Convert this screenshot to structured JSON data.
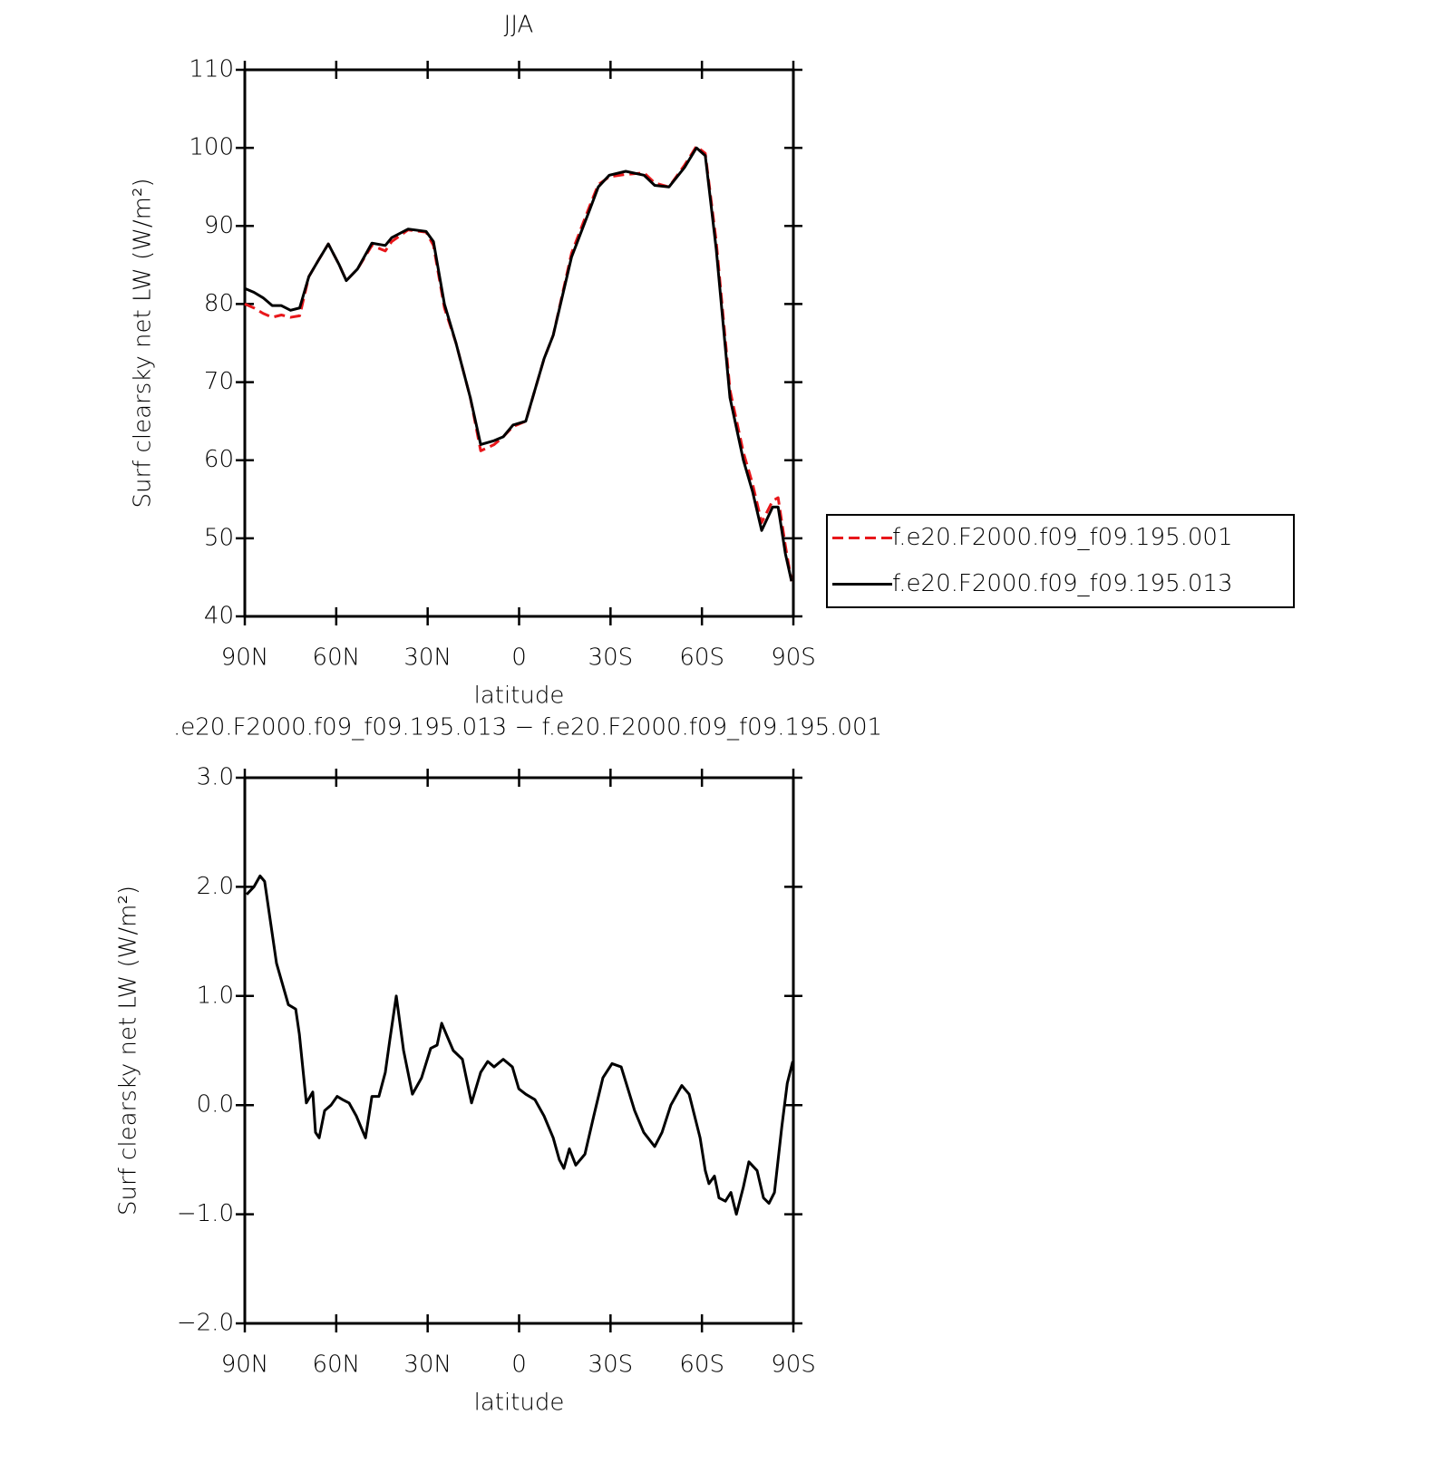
{
  "chart_data": [
    {
      "type": "line",
      "title": "JJA",
      "x_label": "latitude",
      "y_label": "Surf clearsky net LW (W/m²)",
      "xlim": [
        90,
        -90
      ],
      "xticks": [
        {
          "value": 90,
          "label": "90N"
        },
        {
          "value": 60,
          "label": "60N"
        },
        {
          "value": 30,
          "label": "30N"
        },
        0,
        {
          "value": -30,
          "label": "30S"
        },
        {
          "value": -60,
          "label": "60S"
        },
        {
          "value": -90,
          "label": "90S"
        }
      ],
      "ylim": [
        40,
        110
      ],
      "yticks": [
        40,
        50,
        60,
        70,
        80,
        90,
        100,
        110
      ],
      "legend": "right",
      "x": [
        90,
        87,
        84,
        81,
        78,
        75,
        72,
        69,
        66,
        62.6,
        59,
        56.7,
        53,
        48.3,
        43.9,
        41.8,
        36.4,
        30.5,
        28.1,
        24.5,
        20.7,
        16,
        12.6,
        8.2,
        5.2,
        2,
        -2.2,
        -8.2,
        -11.2,
        -17.2,
        -23.1,
        -26,
        -29.6,
        -35,
        -41,
        -44.5,
        -49.2,
        -54.3,
        -58.2,
        -61.1,
        -64.7,
        -69.2,
        -73.6,
        -76.6,
        -79.6,
        -83.2,
        -85,
        -87.4,
        -89.4
      ],
      "series": [
        {
          "name": "f.e20.F2000.f09_f09.195.001",
          "color": "#e8171b",
          "style": "dashed",
          "values": [
            80,
            79.5,
            78.8,
            78.3,
            78.6,
            78.3,
            78.5,
            83.5,
            85.5,
            87.7,
            85,
            83,
            84.5,
            87.5,
            86.8,
            88,
            89.5,
            89.2,
            87.5,
            79.5,
            75,
            68,
            61.2,
            62,
            63,
            64.3,
            65,
            73,
            76,
            86.5,
            92.5,
            95.3,
            96.3,
            96.6,
            96.8,
            95.5,
            95,
            97.8,
            100.2,
            99.3,
            88,
            69,
            61,
            57,
            52,
            54.8,
            55.2,
            49,
            44.5
          ]
        },
        {
          "name": "f.e20.F2000.f09_f09.195.013",
          "color": "#000000",
          "style": "solid",
          "values": [
            82,
            81.5,
            80.8,
            79.8,
            79.8,
            79.2,
            79.5,
            83.5,
            85.5,
            87.7,
            85,
            83,
            84.5,
            87.8,
            87.5,
            88.5,
            89.6,
            89.3,
            88,
            80,
            75,
            68,
            62,
            62.5,
            63,
            64.5,
            65,
            73,
            76,
            86,
            92,
            95,
            96.5,
            97,
            96.5,
            95.2,
            95,
            97.5,
            100,
            99,
            87,
            68,
            60,
            56,
            51,
            54,
            54,
            48,
            44.5
          ]
        }
      ]
    },
    {
      "type": "line",
      "title": ".e20.F2000.f09_f09.195.013 − f.e20.F2000.f09_f09.195.001",
      "x_label": "latitude",
      "y_label": "Surf clearsky net LW (W/m²)",
      "xlim": [
        90,
        -90
      ],
      "xticks": [
        {
          "value": 90,
          "label": "90N"
        },
        {
          "value": 60,
          "label": "60N"
        },
        {
          "value": 30,
          "label": "30N"
        },
        0,
        {
          "value": -30,
          "label": "30S"
        },
        {
          "value": -60,
          "label": "60S"
        },
        {
          "value": -90,
          "label": "90S"
        }
      ],
      "ylim": [
        -2,
        3
      ],
      "yticks": [
        {
          "value": -2,
          "label": "−2.0"
        },
        {
          "value": -1,
          "label": "−1.0"
        },
        {
          "value": 0,
          "label": "0.0"
        },
        {
          "value": 1,
          "label": "1.0"
        },
        {
          "value": 2,
          "label": "2.0"
        },
        {
          "value": 3,
          "label": "3.0"
        }
      ],
      "x": [
        89.4,
        87,
        85,
        83.5,
        79.6,
        75.7,
        73.3,
        72.1,
        69.8,
        67.7,
        66.8,
        65.6,
        63.8,
        61.7,
        59.7,
        57.9,
        55.8,
        53.4,
        50.4,
        48.3,
        46,
        43.9,
        42.4,
        40.3,
        37.9,
        35,
        32,
        29,
        26.9,
        25.4,
        23.9,
        21.6,
        18.6,
        15.6,
        12.6,
        10.3,
        8.2,
        5.2,
        2.2,
        0.1,
        -2.2,
        -5.2,
        -8.2,
        -11.2,
        -13.2,
        -14.7,
        -16.5,
        -18.6,
        -21.6,
        -24.5,
        -27.5,
        -30.5,
        -33.5,
        -37.9,
        -40.9,
        -44.5,
        -46.9,
        -49.8,
        -53.4,
        -55.8,
        -59.4,
        -61.1,
        -62.3,
        -64.1,
        -65.6,
        -67.7,
        -69.5,
        -71.3,
        -73.6,
        -75.4,
        -78.1,
        -80.2,
        -82,
        -83.8,
        -86.2,
        -88,
        -89.8
      ],
      "series": [
        {
          "name": "difference",
          "color": "#000000",
          "style": "solid",
          "values": [
            1.93,
            2.0,
            2.1,
            2.05,
            1.3,
            0.92,
            0.88,
            0.65,
            0.02,
            0.12,
            -0.25,
            -0.3,
            -0.05,
            0.0,
            0.08,
            0.05,
            0.02,
            -0.1,
            -0.3,
            0.08,
            0.08,
            0.3,
            0.6,
            1.0,
            0.5,
            0.1,
            0.25,
            0.52,
            0.55,
            0.75,
            0.65,
            0.5,
            0.42,
            0.02,
            0.3,
            0.4,
            0.35,
            0.42,
            0.35,
            0.15,
            0.1,
            0.05,
            -0.1,
            -0.3,
            -0.5,
            -0.58,
            -0.4,
            -0.55,
            -0.45,
            -0.1,
            0.25,
            0.38,
            0.35,
            -0.05,
            -0.25,
            -0.38,
            -0.25,
            0.0,
            0.18,
            0.1,
            -0.3,
            -0.6,
            -0.72,
            -0.65,
            -0.85,
            -0.88,
            -0.8,
            -1.0,
            -0.75,
            -0.52,
            -0.6,
            -0.85,
            -0.9,
            -0.8,
            -0.2,
            0.2,
            0.4
          ]
        }
      ]
    }
  ]
}
